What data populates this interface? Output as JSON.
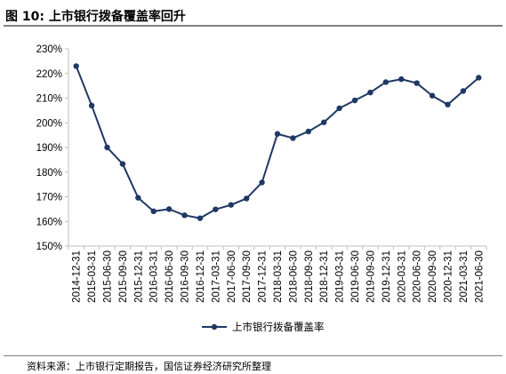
{
  "header": {
    "title": "图 10:  上市银行拨备覆盖率回升"
  },
  "footer": {
    "source": "资料来源：上市银行定期报告，国信证券经济研究所整理"
  },
  "colors": {
    "series": "#1f3864",
    "axis": "#bfbfbf",
    "rule": "#7f7f7f"
  },
  "chart_data": {
    "type": "line",
    "title": "",
    "xlabel": "",
    "ylabel": "",
    "ylim": [
      150,
      230
    ],
    "y_tick_step": 10,
    "y_unit": "%",
    "grid": false,
    "legend_position": "bottom",
    "x": [
      "2014-12-31",
      "2015-03-31",
      "2015-06-30",
      "2015-09-30",
      "2015-12-31",
      "2016-03-31",
      "2016-06-30",
      "2016-09-30",
      "2016-12-31",
      "2017-03-31",
      "2017-06-30",
      "2017-09-30",
      "2017-12-31",
      "2018-03-31",
      "2018-06-30",
      "2018-09-30",
      "2018-12-31",
      "2019-03-31",
      "2019-06-30",
      "2019-09-30",
      "2019-12-31",
      "2020-03-31",
      "2020-06-30",
      "2020-09-30",
      "2020-12-31",
      "2021-03-31",
      "2021-06-30"
    ],
    "series": [
      {
        "name": "上市银行拨备覆盖率",
        "values": [
          223.0,
          207.0,
          190.0,
          183.3,
          169.6,
          164.1,
          165.0,
          162.5,
          161.3,
          164.9,
          166.7,
          169.3,
          175.8,
          195.5,
          193.8,
          196.5,
          200.2,
          205.9,
          209.1,
          212.3,
          216.5,
          217.7,
          216.1,
          211.0,
          207.4,
          212.9,
          218.3
        ]
      }
    ]
  }
}
